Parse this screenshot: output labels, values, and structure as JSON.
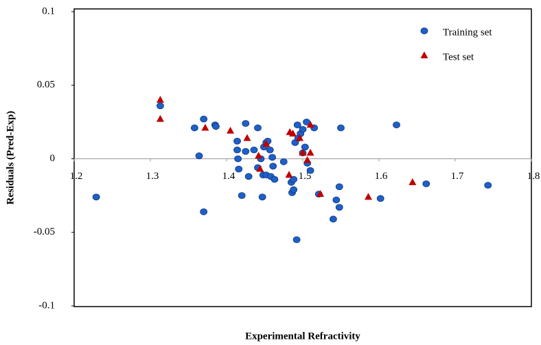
{
  "chart_data": {
    "type": "scatter",
    "xlabel": "Experimental Refractivity",
    "ylabel": "Residuals (Pred-Exp)",
    "xlim": [
      1.2,
      1.8
    ],
    "xticks": [
      1.2,
      1.3,
      1.4,
      1.5,
      1.6,
      1.7,
      1.8
    ],
    "ylim": [
      -0.1,
      0.1
    ],
    "yticks": [
      -0.1,
      -0.05,
      0,
      0.05,
      0.1
    ],
    "legend_position": "upper-right",
    "series": [
      {
        "name": "Training set",
        "color": "#1f5fc8",
        "marker": "circle",
        "x": [
          1.313,
          1.364,
          1.358,
          1.37,
          1.385,
          1.386,
          1.425,
          1.441,
          1.414,
          1.414,
          1.415,
          1.416,
          1.42,
          1.429,
          1.425,
          1.436,
          1.441,
          1.445,
          1.449,
          1.452,
          1.454,
          1.457,
          1.46,
          1.461,
          1.448,
          1.452,
          1.458,
          1.463,
          1.447,
          1.475,
          1.37,
          1.229,
          1.492,
          1.485,
          1.486,
          1.488,
          1.488,
          1.493,
          1.49,
          1.494,
          1.497,
          1.5,
          1.505,
          1.503,
          1.5,
          1.506,
          1.51,
          1.515,
          1.521,
          1.54,
          1.544,
          1.548,
          1.548,
          1.55,
          1.602,
          1.623,
          1.662,
          1.743
        ],
        "values": [
          0.036,
          0.002,
          0.021,
          0.027,
          0.023,
          0.022,
          0.024,
          0.021,
          0.012,
          0.006,
          0.0,
          -0.007,
          -0.025,
          -0.012,
          0.005,
          0.006,
          -0.006,
          0.0,
          0.008,
          0.011,
          0.012,
          0.006,
          0.001,
          -0.005,
          -0.011,
          -0.011,
          -0.012,
          -0.014,
          -0.026,
          -0.002,
          -0.036,
          -0.026,
          -0.055,
          -0.016,
          -0.023,
          -0.021,
          -0.014,
          0.023,
          0.011,
          0.014,
          0.017,
          0.02,
          0.025,
          0.008,
          0.004,
          -0.003,
          -0.008,
          0.021,
          -0.024,
          -0.041,
          -0.028,
          -0.033,
          -0.019,
          0.021,
          -0.027,
          0.023,
          -0.017,
          -0.018
        ]
      },
      {
        "name": "Test set",
        "color": "#c00000",
        "marker": "triangle",
        "x": [
          1.313,
          1.313,
          1.372,
          1.405,
          1.427,
          1.442,
          1.444,
          1.452,
          1.483,
          1.487,
          1.496,
          1.5,
          1.506,
          1.51,
          1.482,
          1.51,
          1.523,
          1.586,
          1.644
        ],
        "values": [
          0.04,
          0.027,
          0.021,
          0.019,
          0.014,
          0.002,
          -0.007,
          0.01,
          0.018,
          0.017,
          0.014,
          0.004,
          -0.001,
          0.004,
          -0.011,
          0.023,
          -0.024,
          -0.026,
          -0.016
        ]
      }
    ]
  }
}
